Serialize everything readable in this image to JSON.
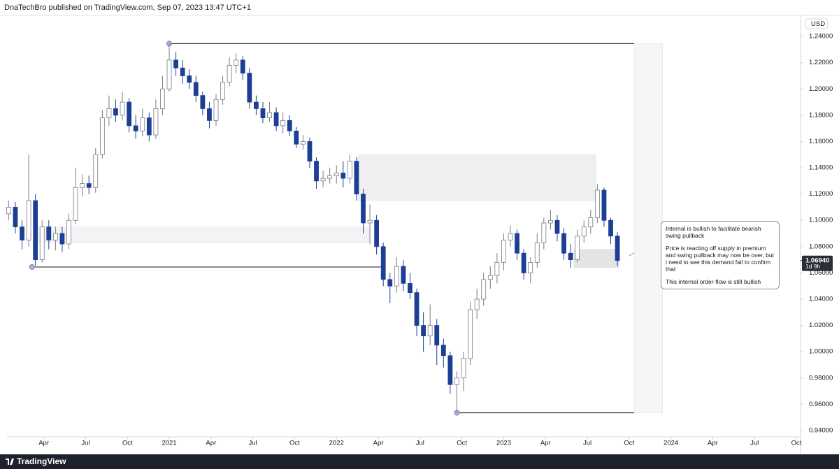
{
  "header": "DnaTechBro published on TradingView.com, Sep 07, 2023 13:47 UTC+1",
  "footer": "TradingView",
  "chart_data": {
    "type": "candlestick",
    "currency": "USD",
    "ylim": [
      0.9352,
      1.256
    ],
    "xlim": [
      2020.03,
      2024.775
    ],
    "yticks": [
      {
        "value": 1.24,
        "label": "1.24000"
      },
      {
        "value": 1.22,
        "label": "1.22000"
      },
      {
        "value": 1.2,
        "label": "1.20000"
      },
      {
        "value": 1.18,
        "label": "1.18000"
      },
      {
        "value": 1.16,
        "label": "1.16000"
      },
      {
        "value": 1.14,
        "label": "1.14000"
      },
      {
        "value": 1.12,
        "label": "1.12000"
      },
      {
        "value": 1.1,
        "label": "1.10000"
      },
      {
        "value": 1.08,
        "label": "1.08000"
      },
      {
        "value": 1.06,
        "label": "1.06000"
      },
      {
        "value": 1.04,
        "label": "1.04000"
      },
      {
        "value": 1.02,
        "label": "1.02000"
      },
      {
        "value": 1.0,
        "label": "1.00000"
      },
      {
        "value": 0.98,
        "label": "0.98000"
      },
      {
        "value": 0.96,
        "label": "0.96000"
      },
      {
        "value": 0.94,
        "label": "0.94000"
      }
    ],
    "xticks": [
      {
        "value": 2020.25,
        "label": "Apr"
      },
      {
        "value": 2020.5,
        "label": "Jul"
      },
      {
        "value": 2020.75,
        "label": "Oct"
      },
      2021,
      {
        "value": 2021.25,
        "label": "Apr"
      },
      {
        "value": 2021.5,
        "label": "Jul"
      },
      {
        "value": 2021.75,
        "label": "Oct"
      },
      2022,
      {
        "value": 2022.25,
        "label": "Apr"
      },
      {
        "value": 2022.5,
        "label": "Jul"
      },
      {
        "value": 2022.75,
        "label": "Oct"
      },
      2023,
      {
        "value": 2023.25,
        "label": "Apr"
      },
      {
        "value": 2023.5,
        "label": "Jul"
      },
      {
        "value": 2023.75,
        "label": "Oct"
      },
      2024,
      {
        "value": 2024.25,
        "label": "Apr"
      },
      {
        "value": 2024.5,
        "label": "Jul"
      },
      {
        "value": 2024.75,
        "label": "Oct"
      }
    ],
    "grid": false,
    "up_color": "#ffffff",
    "down_color": "#1c3f94",
    "wick_color": "#787b86",
    "candles": {
      "x": [
        2020.04,
        2020.08,
        2020.12,
        2020.16,
        2020.2,
        2020.24,
        2020.28,
        2020.32,
        2020.36,
        2020.4,
        2020.44,
        2020.48,
        2020.52,
        2020.56,
        2020.6,
        2020.64,
        2020.68,
        2020.72,
        2020.76,
        2020.8,
        2020.84,
        2020.88,
        2020.92,
        2020.96,
        2021,
        2021.04,
        2021.08,
        2021.12,
        2021.16,
        2021.2,
        2021.24,
        2021.28,
        2021.32,
        2021.36,
        2021.4,
        2021.44,
        2021.48,
        2021.52,
        2021.56,
        2021.6,
        2021.64,
        2021.68,
        2021.72,
        2021.76,
        2021.8,
        2021.84,
        2021.88,
        2021.92,
        2021.96,
        2022,
        2022.04,
        2022.08,
        2022.12,
        2022.16,
        2022.2,
        2022.24,
        2022.28,
        2022.32,
        2022.36,
        2022.4,
        2022.44,
        2022.48,
        2022.52,
        2022.56,
        2022.6,
        2022.64,
        2022.68,
        2022.72,
        2022.76,
        2022.8,
        2022.84,
        2022.88,
        2022.92,
        2022.96,
        2023,
        2023.04,
        2023.08,
        2023.12,
        2023.16,
        2023.2,
        2023.24,
        2023.28,
        2023.32,
        2023.36,
        2023.4,
        2023.44,
        2023.48,
        2023.52,
        2023.56,
        2023.6,
        2023.64,
        2023.68
      ],
      "open": [
        1.105,
        1.11,
        1.095,
        1.085,
        1.115,
        1.07,
        1.095,
        1.085,
        1.09,
        1.082,
        1.1,
        1.125,
        1.128,
        1.125,
        1.15,
        1.178,
        1.185,
        1.18,
        1.19,
        1.172,
        1.168,
        1.178,
        1.165,
        1.185,
        1.2,
        1.222,
        1.216,
        1.21,
        1.205,
        1.195,
        1.185,
        1.176,
        1.192,
        1.205,
        1.218,
        1.222,
        1.212,
        1.19,
        1.185,
        1.178,
        1.182,
        1.172,
        1.176,
        1.168,
        1.158,
        1.16,
        1.145,
        1.13,
        1.132,
        1.134,
        1.136,
        1.132,
        1.145,
        1.12,
        1.098,
        1.1,
        1.08,
        1.055,
        1.05,
        1.065,
        1.052,
        1.045,
        1.02,
        1.012,
        1.02,
        1.005,
        0.997,
        0.975,
        0.98,
        0.995,
        1.032,
        1.04,
        1.055,
        1.058,
        1.068,
        1.085,
        1.09,
        1.075,
        1.06,
        1.068,
        1.083,
        1.098,
        1.1,
        1.09,
        1.075,
        1.07,
        1.088,
        1.095,
        1.102,
        1.123,
        1.1,
        1.088
      ],
      "high": [
        1.115,
        1.114,
        1.1,
        1.15,
        1.12,
        1.1,
        1.1,
        1.095,
        1.095,
        1.105,
        1.14,
        1.135,
        1.134,
        1.155,
        1.184,
        1.195,
        1.192,
        1.198,
        1.193,
        1.18,
        1.185,
        1.182,
        1.192,
        1.21,
        1.235,
        1.228,
        1.222,
        1.215,
        1.21,
        1.198,
        1.19,
        1.196,
        1.21,
        1.224,
        1.227,
        1.225,
        1.216,
        1.195,
        1.19,
        1.19,
        1.186,
        1.182,
        1.18,
        1.171,
        1.165,
        1.163,
        1.148,
        1.138,
        1.14,
        1.142,
        1.145,
        1.15,
        1.148,
        1.124,
        1.112,
        1.104,
        1.083,
        1.06,
        1.072,
        1.07,
        1.06,
        1.048,
        1.03,
        1.036,
        1.025,
        1.01,
        1.0,
        0.985,
        1.0,
        1.038,
        1.048,
        1.06,
        1.065,
        1.075,
        1.09,
        1.096,
        1.093,
        1.078,
        1.072,
        1.09,
        1.102,
        1.108,
        1.104,
        1.094,
        1.082,
        1.093,
        1.1,
        1.108,
        1.1275,
        1.125,
        1.102,
        1.091
      ],
      "low": [
        1.1,
        1.09,
        1.078,
        1.08,
        1.0655,
        1.068,
        1.078,
        1.077,
        1.076,
        1.078,
        1.097,
        1.118,
        1.12,
        1.121,
        1.147,
        1.172,
        1.175,
        1.176,
        1.167,
        1.162,
        1.164,
        1.16,
        1.162,
        1.18,
        1.198,
        1.21,
        1.204,
        1.2,
        1.19,
        1.18,
        1.17,
        1.172,
        1.188,
        1.202,
        1.212,
        1.207,
        1.185,
        1.18,
        1.174,
        1.175,
        1.168,
        1.166,
        1.164,
        1.155,
        1.154,
        1.14,
        1.124,
        1.125,
        1.128,
        1.128,
        1.125,
        1.128,
        1.115,
        1.09,
        1.082,
        1.074,
        1.05,
        1.037,
        1.045,
        1.046,
        1.04,
        1.012,
        1.0,
        1.005,
        0.99,
        0.988,
        0.968,
        0.9535,
        0.97,
        0.99,
        1.025,
        1.035,
        1.048,
        1.052,
        1.062,
        1.08,
        1.07,
        1.055,
        1.052,
        1.064,
        1.078,
        1.093,
        1.084,
        1.07,
        1.064,
        1.068,
        1.083,
        1.09,
        1.098,
        1.095,
        1.082,
        1.065
      ],
      "close": [
        1.11,
        1.095,
        1.085,
        1.115,
        1.07,
        1.095,
        1.085,
        1.09,
        1.082,
        1.1,
        1.125,
        1.128,
        1.125,
        1.15,
        1.178,
        1.185,
        1.18,
        1.19,
        1.172,
        1.168,
        1.178,
        1.165,
        1.185,
        1.2,
        1.222,
        1.216,
        1.21,
        1.205,
        1.195,
        1.185,
        1.176,
        1.192,
        1.205,
        1.218,
        1.222,
        1.212,
        1.19,
        1.185,
        1.178,
        1.182,
        1.172,
        1.176,
        1.168,
        1.158,
        1.16,
        1.145,
        1.13,
        1.132,
        1.134,
        1.136,
        1.132,
        1.145,
        1.12,
        1.098,
        1.1,
        1.08,
        1.055,
        1.05,
        1.065,
        1.052,
        1.045,
        1.02,
        1.012,
        1.02,
        1.005,
        0.997,
        0.975,
        0.98,
        0.995,
        1.032,
        1.04,
        1.055,
        1.058,
        1.068,
        1.085,
        1.09,
        1.075,
        1.06,
        1.068,
        1.083,
        1.098,
        1.1,
        1.09,
        1.075,
        1.07,
        1.088,
        1.095,
        1.102,
        1.123,
        1.1,
        1.088,
        1.0694
      ]
    },
    "levels": [
      {
        "value": 1.2345,
        "x": [
          2021.0,
          2023.78
        ]
      },
      {
        "value": 1.0645,
        "x": [
          2020.18,
          2022.27
        ]
      },
      {
        "value": 0.9535,
        "x": [
          2022.72,
          2023.78
        ]
      }
    ],
    "level_color": "#131722",
    "zones": [
      {
        "x": [
          2023.78,
          2023.95
        ],
        "y": [
          0.9535,
          1.2345
        ],
        "color": "#f6f6f8"
      },
      {
        "x": [
          2022.13,
          2023.55
        ],
        "y": [
          1.115,
          1.15
        ],
        "color": "#efeff1"
      },
      {
        "x": [
          2020.22,
          2022.2
        ],
        "y": [
          1.083,
          1.095
        ],
        "color": "#f3f3f5"
      },
      {
        "x": [
          2023.42,
          2023.69
        ],
        "y": [
          1.064,
          1.078
        ],
        "color": "#e4e4e7"
      }
    ],
    "last_price": {
      "value": 1.0694,
      "label": "1.06940"
    },
    "countdown": "1d 9h",
    "annotation": [
      "Internal is bullish to facilitate bearish swing pullback",
      "Price is reacting off supply in premium and swing pullback may now be over, but i need to see this demand fail to confirm that",
      "This internal order-flow is still bullish"
    ]
  }
}
